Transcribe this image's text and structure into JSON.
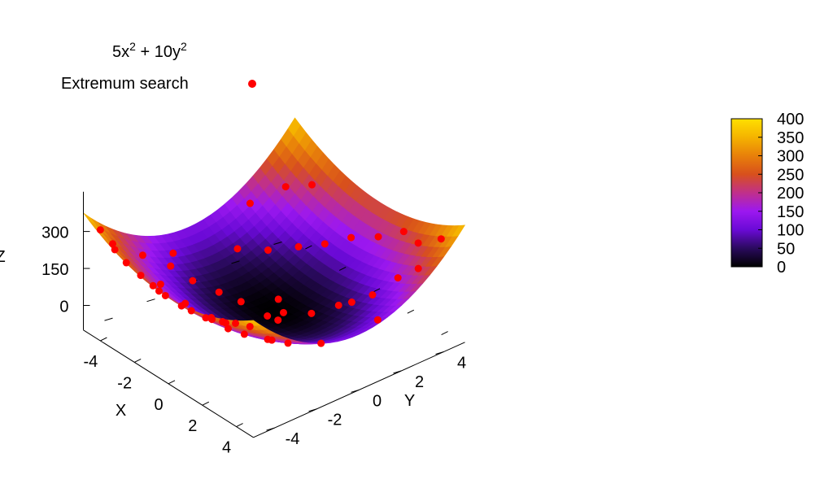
{
  "chart_data": {
    "type": "surface3d",
    "legend": {
      "surface_label": {
        "base": "5x",
        "exp1": "2",
        "mid": " + 10y",
        "exp2": "2"
      },
      "points_label": "Extremum search",
      "placement": "top-left"
    },
    "axes": {
      "x": {
        "label": "X",
        "range": [
          -5,
          5
        ],
        "ticks": [
          -4,
          -2,
          0,
          2,
          4
        ],
        "tick_labels": [
          "-4",
          "-2",
          "0",
          "2",
          "4"
        ]
      },
      "y": {
        "label": "Y",
        "range": [
          -5,
          5
        ],
        "ticks": [
          -4,
          -2,
          0,
          2,
          4
        ],
        "tick_labels": [
          "-4",
          "-2",
          "0",
          "2",
          "4"
        ]
      },
      "z": {
        "label": "Z",
        "range": [
          -100,
          400
        ],
        "ticks": [
          0,
          150,
          300
        ],
        "tick_labels": [
          "0",
          "150",
          "300"
        ]
      }
    },
    "surface": {
      "function": "5x^2 + 10y^2",
      "x_range": [
        -5,
        5
      ],
      "y_range": [
        -5,
        5
      ],
      "grid_steps": 30
    },
    "colorbar": {
      "range": [
        0,
        400
      ],
      "ticks": [
        0,
        50,
        100,
        150,
        200,
        250,
        300,
        350,
        400
      ],
      "tick_labels": [
        "0",
        "50",
        "100",
        "150",
        "200",
        "250",
        "300",
        "350",
        "400"
      ],
      "colormap": [
        "#000000",
        "#2a0a5e",
        "#6a0ad6",
        "#9c18f0",
        "#c0308a",
        "#d8501c",
        "#e8800a",
        "#f5b300",
        "#ffe000"
      ]
    },
    "points": {
      "color": "#ff0000",
      "xy": [
        [
          -4.5,
          -4.6
        ],
        [
          -3.9,
          -4.5
        ],
        [
          -3.4,
          -4.8
        ],
        [
          -2.6,
          -4.9
        ],
        [
          -2.0,
          -4.7
        ],
        [
          -1.4,
          -4.6
        ],
        [
          -0.8,
          -4.8
        ],
        [
          -0.3,
          -4.9
        ],
        [
          0.4,
          -4.7
        ],
        [
          1.1,
          -4.8
        ],
        [
          1.7,
          -4.6
        ],
        [
          2.4,
          -4.9
        ],
        [
          3.0,
          -4.7
        ],
        [
          3.7,
          -4.8
        ],
        [
          4.3,
          -4.6
        ],
        [
          -2.2,
          -3.6
        ],
        [
          -1.0,
          -3.4
        ],
        [
          0.2,
          -3.1
        ],
        [
          1.4,
          -3.3
        ],
        [
          2.6,
          -3.5
        ],
        [
          3.6,
          -3.2
        ],
        [
          -4.0,
          -3.0
        ],
        [
          -3.6,
          -2.0
        ],
        [
          -2.8,
          -1.6
        ],
        [
          -2.0,
          -1.0
        ],
        [
          -1.2,
          -0.6
        ],
        [
          -4.2,
          -1.4
        ],
        [
          -0.5,
          0.6
        ],
        [
          0.3,
          0.2
        ],
        [
          0.1,
          -0.4
        ],
        [
          0.6,
          -0.3
        ],
        [
          1.2,
          0.8
        ],
        [
          1.8,
          1.6
        ],
        [
          2.2,
          1.9
        ],
        [
          2.8,
          2.4
        ],
        [
          3.3,
          3.2
        ],
        [
          4.0,
          3.6
        ],
        [
          -3.4,
          1.0
        ],
        [
          -2.6,
          1.8
        ],
        [
          -1.8,
          2.6
        ],
        [
          -1.0,
          3.2
        ],
        [
          -0.2,
          3.8
        ],
        [
          0.9,
          4.2
        ],
        [
          1.9,
          4.6
        ],
        [
          3.0,
          4.4
        ],
        [
          4.1,
          4.6
        ],
        [
          -4.4,
          2.4
        ],
        [
          -3.8,
          3.6
        ],
        [
          -3.0,
          4.2
        ],
        [
          4.6,
          1.2
        ],
        [
          4.5,
          -1.4
        ],
        [
          3.8,
          -2.4
        ],
        [
          2.6,
          -2.2
        ],
        [
          0.2,
          -2.6
        ]
      ]
    }
  }
}
